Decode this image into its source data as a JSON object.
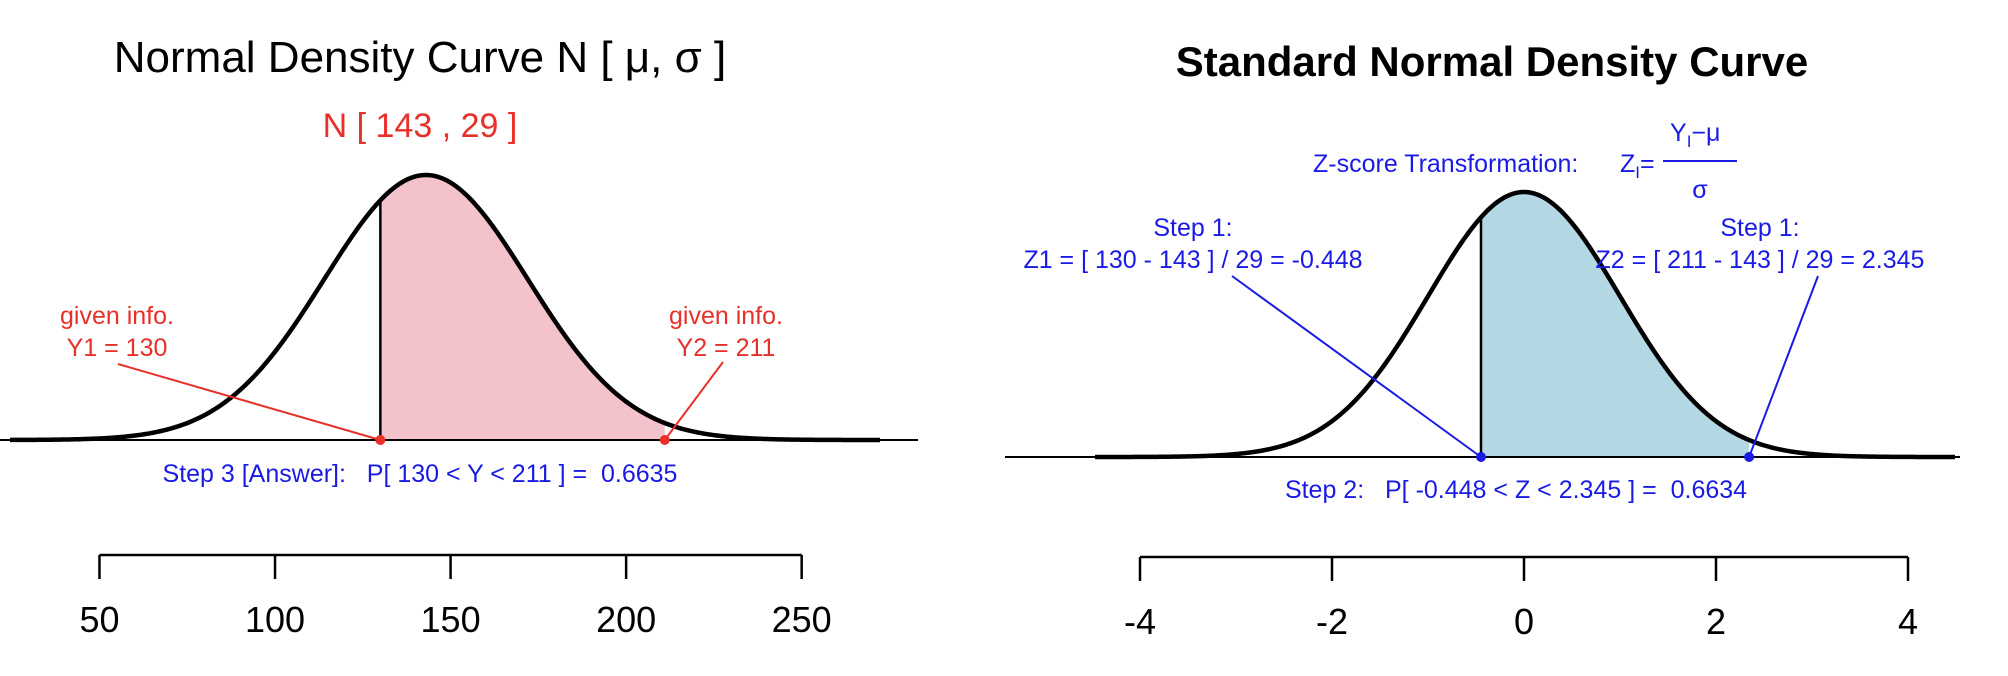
{
  "chart_data": [
    {
      "type": "area",
      "title": "Normal Density Curve N [ μ, σ ]",
      "subtitle": "N [ 143 , 29 ]",
      "mean": 143,
      "sd": 29,
      "shaded_interval": [
        130,
        211
      ],
      "xlim": [
        50,
        250
      ],
      "xticks": [
        50,
        100,
        150,
        200,
        250
      ],
      "annotations": {
        "left_label": [
          "given info.",
          "Y1 = 130"
        ],
        "right_label": [
          "given info.",
          "Y2 = 211"
        ],
        "answer": "Step 3 [Answer]:   P[ 130 < Y < 211 ] =  0.6635"
      },
      "colors": {
        "fill": "#f4c2ca",
        "curve": "#000000",
        "text": "#e8302b",
        "answer": "#1a1ae6"
      }
    },
    {
      "type": "area",
      "title": "Standard Normal Density Curve",
      "mean": 0,
      "sd": 1,
      "shaded_interval": [
        -0.448,
        2.345
      ],
      "xlim": [
        -4,
        4
      ],
      "xticks": [
        -4,
        -2,
        0,
        2,
        4
      ],
      "annotations": {
        "formula_label": "Z-score Transformation:",
        "formula_lhs": "Z",
        "formula_sub": "I",
        "formula_num": "Y  − μ",
        "formula_num_sub": "I",
        "formula_den": "σ",
        "step1_left": [
          "Step 1:",
          "Z1 = [ 130 - 143 ] / 29 = -0.448"
        ],
        "step1_right": [
          "Step 1:",
          "Z2 = [ 211 - 143 ] / 29 = 2.345"
        ],
        "step2": "Step 2:   P[ -0.448 < Z < 2.345 ] =  0.6634"
      },
      "colors": {
        "fill": "#b3d7e3",
        "curve": "#000000",
        "text": "#1a1ae6"
      }
    }
  ]
}
